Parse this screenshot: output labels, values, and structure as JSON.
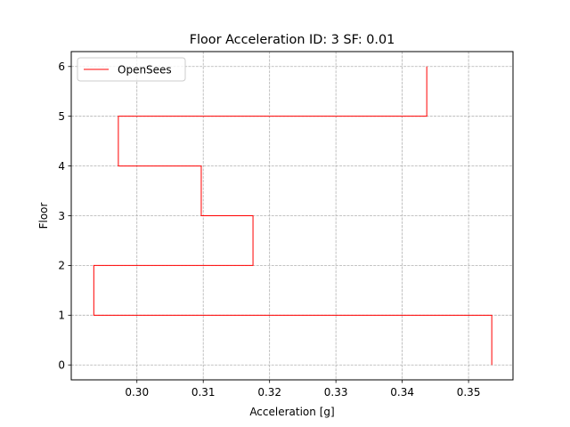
{
  "chart_data": {
    "type": "line",
    "title": "Floor Acceleration ID: 3  SF: 0.01",
    "xlabel": "Acceleration [g]",
    "ylabel": "Floor",
    "xlim": [
      0.2901,
      0.3567
    ],
    "ylim": [
      -0.3,
      6.3
    ],
    "xticks": [
      0.3,
      0.31,
      0.32,
      0.33,
      0.34,
      0.35
    ],
    "xtick_labels": [
      "0.30",
      "0.31",
      "0.32",
      "0.33",
      "0.34",
      "0.35"
    ],
    "yticks": [
      0,
      1,
      2,
      3,
      4,
      5,
      6
    ],
    "ytick_labels": [
      "0",
      "1",
      "2",
      "3",
      "4",
      "5",
      "6"
    ],
    "grid": true,
    "legend_position": "top-left",
    "series": [
      {
        "name": "OpenSees",
        "color": "#ff0000",
        "drawstyle": "steps",
        "points": [
          {
            "x": 0.3535,
            "y": 0
          },
          {
            "x": 0.3535,
            "y": 1
          },
          {
            "x": 0.2935,
            "y": 1
          },
          {
            "x": 0.2935,
            "y": 2
          },
          {
            "x": 0.3175,
            "y": 2
          },
          {
            "x": 0.3175,
            "y": 3
          },
          {
            "x": 0.3097,
            "y": 3
          },
          {
            "x": 0.3097,
            "y": 4
          },
          {
            "x": 0.2972,
            "y": 4
          },
          {
            "x": 0.2972,
            "y": 5
          },
          {
            "x": 0.3437,
            "y": 5
          },
          {
            "x": 0.3437,
            "y": 6
          }
        ]
      }
    ]
  }
}
